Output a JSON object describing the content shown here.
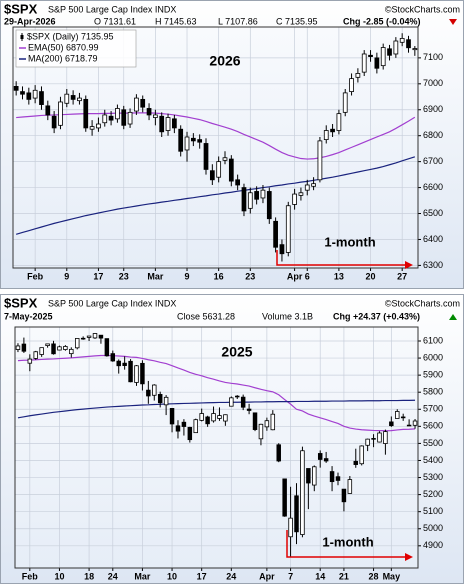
{
  "chart_data": [
    {
      "type": "candlestick",
      "title": "$SPX",
      "subtitle": "S&P 500 Large Cap Index INDX",
      "source": "©StockCharts.com",
      "info": [
        "29-Apr-2026",
        "O 7131.61",
        "H 7145.63",
        "L 7107.86",
        "C 7135.95"
      ],
      "change": {
        "label": "Chg -2.85 (-0.04%)",
        "color": "#d40000",
        "direction": "down"
      },
      "annotations": [
        "2026",
        "1-month"
      ],
      "annotation_color": "#e00000",
      "categories": [
        null,
        null,
        null,
        "Feb",
        null,
        null,
        null,
        null,
        "9",
        null,
        null,
        null,
        null,
        "17",
        null,
        null,
        null,
        "23",
        null,
        null,
        null,
        null,
        "Mar",
        null,
        null,
        null,
        null,
        "9",
        null,
        null,
        null,
        null,
        "16",
        null,
        null,
        null,
        null,
        "23",
        null,
        null,
        null,
        null,
        null,
        null,
        "Apr",
        null,
        "6",
        null,
        null,
        null,
        null,
        "13",
        null,
        null,
        null,
        null,
        "20",
        null,
        null,
        null,
        null,
        "27",
        null,
        null
      ],
      "ohlc": {
        "name": "$SPX (Daily) 7135.95",
        "color": "#000000",
        "open": [
          6990,
          6970,
          6965,
          6945,
          6970,
          6915,
          6875,
          6840,
          6925,
          6955,
          6935,
          6940,
          6825,
          6830,
          6850,
          6875,
          6865,
          6900,
          6845,
          6895,
          6940,
          6905,
          6870,
          6875,
          6820,
          6865,
          6825,
          6745,
          6790,
          6785,
          6770,
          6665,
          6640,
          6705,
          6710,
          6630,
          6600,
          6520,
          6585,
          6560,
          6585,
          6470,
          6380,
          6350,
          6535,
          6570,
          6590,
          6605,
          6630,
          6785,
          6825,
          6820,
          6890,
          6970,
          7025,
          7045,
          7110,
          7100,
          7070,
          7135,
          7115,
          7160,
          7170,
          7131.61
        ],
        "high": [
          7010,
          6990,
          6985,
          6995,
          6990,
          6935,
          6895,
          6950,
          6980,
          6975,
          6965,
          6955,
          6860,
          6870,
          6900,
          6895,
          6920,
          6915,
          6905,
          6960,
          6955,
          6925,
          6900,
          6890,
          6885,
          6880,
          6840,
          6815,
          6810,
          6805,
          6790,
          6690,
          6720,
          6740,
          6725,
          6650,
          6615,
          6600,
          6605,
          6610,
          6600,
          6485,
          6400,
          6545,
          6595,
          6600,
          6630,
          6640,
          6795,
          6840,
          6845,
          6900,
          6980,
          7040,
          7060,
          7130,
          7130,
          7120,
          7155,
          7150,
          7180,
          7195,
          7185,
          7145.63
        ],
        "low": [
          6955,
          6940,
          6920,
          6925,
          6900,
          6860,
          6810,
          6825,
          6910,
          6920,
          6920,
          6815,
          6800,
          6815,
          6835,
          6840,
          6850,
          6825,
          6830,
          6880,
          6890,
          6860,
          6840,
          6795,
          6800,
          6810,
          6720,
          6700,
          6760,
          6750,
          6650,
          6610,
          6620,
          6690,
          6605,
          6590,
          6490,
          6500,
          6535,
          6540,
          6460,
          6350,
          6315,
          6335,
          6515,
          6550,
          6570,
          6590,
          6620,
          6770,
          6795,
          6805,
          6875,
          6955,
          7005,
          7030,
          7085,
          7040,
          7055,
          7090,
          7100,
          7145,
          7120,
          7107.86
        ],
        "close": [
          6975,
          6960,
          6940,
          6975,
          6920,
          6880,
          6830,
          6930,
          6960,
          6940,
          6945,
          6830,
          6835,
          6845,
          6880,
          6860,
          6905,
          6840,
          6890,
          6945,
          6910,
          6880,
          6880,
          6815,
          6870,
          6830,
          6740,
          6795,
          6780,
          6775,
          6670,
          6630,
          6700,
          6715,
          6625,
          6610,
          6510,
          6580,
          6555,
          6590,
          6480,
          6370,
          6345,
          6530,
          6575,
          6580,
          6610,
          6615,
          6780,
          6820,
          6815,
          6885,
          6965,
          7020,
          7040,
          7115,
          7105,
          7060,
          7140,
          7110,
          7165,
          7175,
          7139,
          7135.95
        ]
      },
      "series": [
        {
          "name": "EMA(50) 6870.99",
          "color": "#a23fd0",
          "values": [
            6870,
            6872,
            6874,
            6876,
            6878,
            6879,
            6880,
            6881,
            6882,
            6883,
            6884,
            6885,
            6885,
            6885,
            6886,
            6886,
            6887,
            6887,
            6887,
            6888,
            6888,
            6888,
            6887,
            6885,
            6883,
            6880,
            6876,
            6872,
            6867,
            6862,
            6855,
            6847,
            6840,
            6833,
            6825,
            6816,
            6805,
            6795,
            6785,
            6775,
            6762,
            6748,
            6735,
            6725,
            6718,
            6712,
            6710,
            6711,
            6715,
            6720,
            6727,
            6735,
            6745,
            6755,
            6765,
            6775,
            6785,
            6795,
            6805,
            6815,
            6828,
            6842,
            6856,
            6870.99
          ]
        },
        {
          "name": "MA(200) 6718.79",
          "color": "#1a237e",
          "values": [
            6420,
            6427,
            6434,
            6441,
            6448,
            6455,
            6462,
            6468,
            6474,
            6480,
            6486,
            6492,
            6497,
            6502,
            6507,
            6512,
            6517,
            6521,
            6525,
            6529,
            6533,
            6537,
            6540,
            6544,
            6547,
            6551,
            6554,
            6558,
            6561,
            6565,
            6568,
            6572,
            6575,
            6579,
            6582,
            6586,
            6589,
            6593,
            6596,
            6600,
            6603,
            6607,
            6610,
            6614,
            6617,
            6621,
            6624,
            6628,
            6632,
            6636,
            6640,
            6645,
            6650,
            6655,
            6660,
            6665,
            6670,
            6675,
            6681,
            6688,
            6695,
            6703,
            6711,
            6718.79
          ]
        }
      ],
      "ylim": [
        6290,
        7219
      ],
      "yticks": [
        6300,
        6400,
        6500,
        6600,
        6700,
        6800,
        6900,
        7000,
        7100
      ],
      "grid": true,
      "legend": "top-left"
    },
    {
      "type": "candlestick",
      "title": "$SPX",
      "subtitle": "S&P 500 Large Cap Index INDX",
      "source": "©StockCharts.com",
      "info": [
        "7-May-2025",
        "Close 5631.28",
        "Volume 3.1B"
      ],
      "change": {
        "label": "Chg +24.37 (+0.43%)",
        "color": "#008a00",
        "direction": "up"
      },
      "annotations": [
        "2025",
        "1-month"
      ],
      "annotation_color": "#e00000",
      "categories": [
        null,
        null,
        "Feb",
        null,
        null,
        null,
        null,
        "10",
        null,
        null,
        null,
        null,
        "18",
        null,
        null,
        null,
        "24",
        null,
        null,
        null,
        null,
        "Mar",
        null,
        null,
        null,
        null,
        "10",
        null,
        null,
        null,
        null,
        "17",
        null,
        null,
        null,
        null,
        "24",
        null,
        null,
        null,
        null,
        null,
        "Apr",
        null,
        null,
        null,
        "7",
        null,
        null,
        null,
        null,
        "14",
        null,
        null,
        null,
        "21",
        null,
        null,
        null,
        null,
        "28",
        null,
        null,
        "May",
        null,
        null,
        null,
        null
      ],
      "ohlc": {
        "color": "#000000",
        "open": [
          6050,
          6082,
          5970,
          5998,
          6021,
          6073,
          6083,
          6047,
          6050,
          6026,
          6060,
          6116,
          6121,
          6118,
          6134,
          6114,
          6026,
          5982,
          5970,
          5981,
          5857,
          5969,
          5812,
          5782,
          5787,
          5726,
          5705,
          5603,
          5624,
          5594,
          5563,
          5635,
          5655,
          5632,
          5646,
          5631,
          5718,
          5776,
          5771,
          5701,
          5679,
          5527,
          5597,
          5580,
          5492,
          5292,
          4953,
          5193,
          4966,
          5353,
          5256,
          5441,
          5411,
          5335,
          5305,
          5232,
          5207,
          5395,
          5381,
          5489,
          5529,
          5508,
          5499,
          5626,
          5646,
          5655,
          5605,
          5606
        ],
        "high": [
          6087,
          6120,
          6022,
          6042,
          6062,
          6084,
          6101,
          6073,
          6076,
          6063,
          6116,
          6127,
          6129,
          6147,
          6134,
          6114,
          6044,
          5992,
          6010,
          5994,
          5959,
          5987,
          5866,
          5847,
          5803,
          5783,
          5706,
          5636,
          5642,
          5597,
          5645,
          5704,
          5662,
          5716,
          5711,
          5670,
          5775,
          5783,
          5786,
          5732,
          5679,
          5615,
          5651,
          5695,
          5501,
          5293,
          5246,
          5267,
          5481,
          5353,
          5371,
          5459,
          5450,
          5367,
          5329,
          5232,
          5309,
          5469,
          5489,
          5528,
          5554,
          5571,
          5581,
          5658,
          5700,
          5674,
          5641,
          5643
        ],
        "low": [
          6035,
          6030,
          5923,
          5990,
          6007,
          6061,
          6020,
          6045,
          6043,
          6003,
          6051,
          6107,
          6100,
          6112,
          6084,
          6008,
          5978,
          5909,
          5932,
          5858,
          5837,
          5810,
          5732,
          5751,
          5711,
          5666,
          5565,
          5529,
          5546,
          5505,
          5563,
          5629,
          5597,
          5622,
          5632,
          5603,
          5718,
          5760,
          5695,
          5671,
          5572,
          5489,
          5574,
          5577,
          5390,
          5070,
          4835,
          4910,
          4950,
          5115,
          5220,
          5358,
          5386,
          5220,
          5255,
          5102,
          5207,
          5357,
          5371,
          5455,
          5478,
          5505,
          5434,
          5597,
          5646,
          5632,
          5603,
          5586
        ],
        "close": [
          6071,
          6040,
          5994,
          6037,
          6061,
          6083,
          6025,
          6066,
          6068,
          6051,
          6115,
          6114,
          6129,
          6144,
          6117,
          6013,
          5983,
          5955,
          5956,
          5861,
          5955,
          5849,
          5778,
          5842,
          5738,
          5770,
          5614,
          5572,
          5599,
          5522,
          5639,
          5675,
          5615,
          5675,
          5663,
          5668,
          5767,
          5777,
          5712,
          5693,
          5581,
          5612,
          5633,
          5671,
          5397,
          5074,
          5062,
          4982,
          5457,
          5268,
          5363,
          5406,
          5397,
          5276,
          5283,
          5158,
          5288,
          5376,
          5485,
          5525,
          5529,
          5561,
          5569,
          5604,
          5687,
          5650,
          5607,
          5631.28
        ]
      },
      "series": [
        {
          "color": "#a23fd0",
          "values": [
            5985,
            5987,
            5988,
            5990,
            5992,
            5994,
            5995,
            5997,
            5999,
            6001,
            6004,
            6007,
            6010,
            6013,
            6015,
            6015,
            6014,
            6012,
            6010,
            6006,
            6004,
            5998,
            5990,
            5984,
            5975,
            5968,
            5955,
            5942,
            5930,
            5916,
            5905,
            5896,
            5885,
            5876,
            5866,
            5857,
            5852,
            5848,
            5842,
            5836,
            5826,
            5817,
            5809,
            5802,
            5785,
            5757,
            5730,
            5700,
            5690,
            5672,
            5660,
            5650,
            5640,
            5628,
            5617,
            5600,
            5590,
            5584,
            5580,
            5578,
            5576,
            5575,
            5574,
            5575,
            5579,
            5582,
            5583,
            5585
          ]
        },
        {
          "color": "#1a237e",
          "values": [
            5650,
            5656,
            5662,
            5667,
            5672,
            5677,
            5682,
            5686,
            5690,
            5694,
            5698,
            5701,
            5704,
            5707,
            5710,
            5713,
            5715,
            5717,
            5719,
            5721,
            5723,
            5725,
            5726,
            5728,
            5729,
            5731,
            5732,
            5733,
            5734,
            5735,
            5736,
            5737,
            5738,
            5739,
            5740,
            5740,
            5741,
            5741,
            5742,
            5742,
            5743,
            5743,
            5744,
            5744,
            5745,
            5745,
            5745,
            5746,
            5746,
            5746,
            5747,
            5747,
            5747,
            5748,
            5748,
            5748,
            5749,
            5749,
            5749,
            5750,
            5750,
            5750,
            5751,
            5751,
            5751,
            5752,
            5752,
            5753
          ]
        }
      ],
      "ylim": [
        4770,
        6182
      ],
      "yticks": [
        4900,
        5000,
        5100,
        5200,
        5300,
        5400,
        5500,
        5600,
        5700,
        5800,
        5900,
        6000,
        6100
      ],
      "grid": true
    }
  ]
}
